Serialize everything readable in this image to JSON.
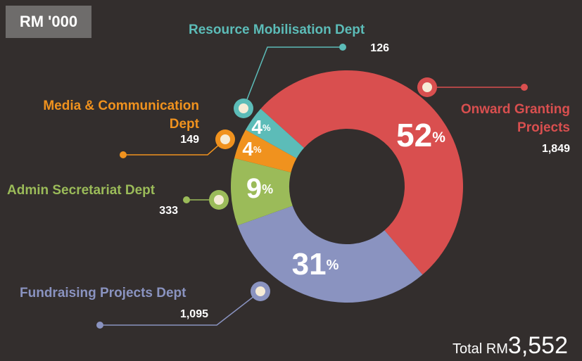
{
  "chart_data": {
    "type": "donut",
    "subtitle": "RM '000",
    "categories": [
      "Onward Granting Projects",
      "Fundraising Projects Dept",
      "Admin Secretariat Dept",
      "Media & Communication Dept",
      "Resource Mobilisation Dept"
    ],
    "values": [
      1849,
      1095,
      333,
      149,
      126
    ],
    "value_labels": [
      "1,849",
      "1,095",
      "333",
      "149",
      "126"
    ],
    "percents": [
      52,
      31,
      9,
      4,
      4
    ],
    "percent_labels": [
      "52%",
      "31%",
      "9%",
      "4%",
      "4%"
    ],
    "colors": [
      "#d94f4f",
      "#8a93c0",
      "#9bbb59",
      "#f0921e",
      "#5cbcb8"
    ],
    "total": {
      "label": "Total RM",
      "value": 3552,
      "value_label": "3,552"
    }
  }
}
